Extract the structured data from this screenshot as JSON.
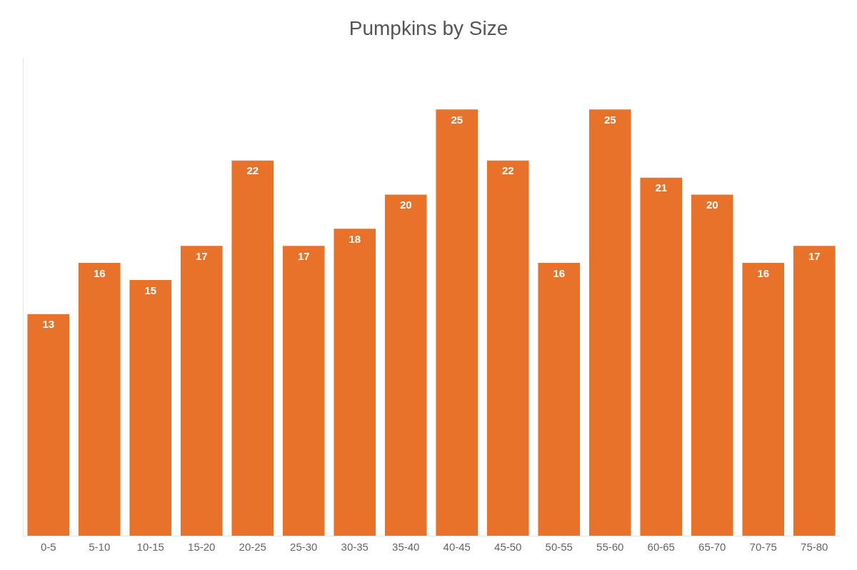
{
  "chart_data": {
    "type": "bar",
    "title": "Pumpkins by Size",
    "categories": [
      "0-5",
      "5-10",
      "10-15",
      "15-20",
      "20-25",
      "25-30",
      "30-35",
      "35-40",
      "40-45",
      "45-50",
      "50-55",
      "55-60",
      "60-65",
      "65-70",
      "70-75",
      "75-80"
    ],
    "values": [
      13,
      16,
      15,
      17,
      22,
      17,
      18,
      20,
      25,
      22,
      16,
      25,
      21,
      20,
      16,
      17
    ],
    "color": "#E8722A",
    "ylim": [
      0,
      28
    ],
    "grid": false,
    "data_labels": true,
    "tick_labels": "x"
  }
}
